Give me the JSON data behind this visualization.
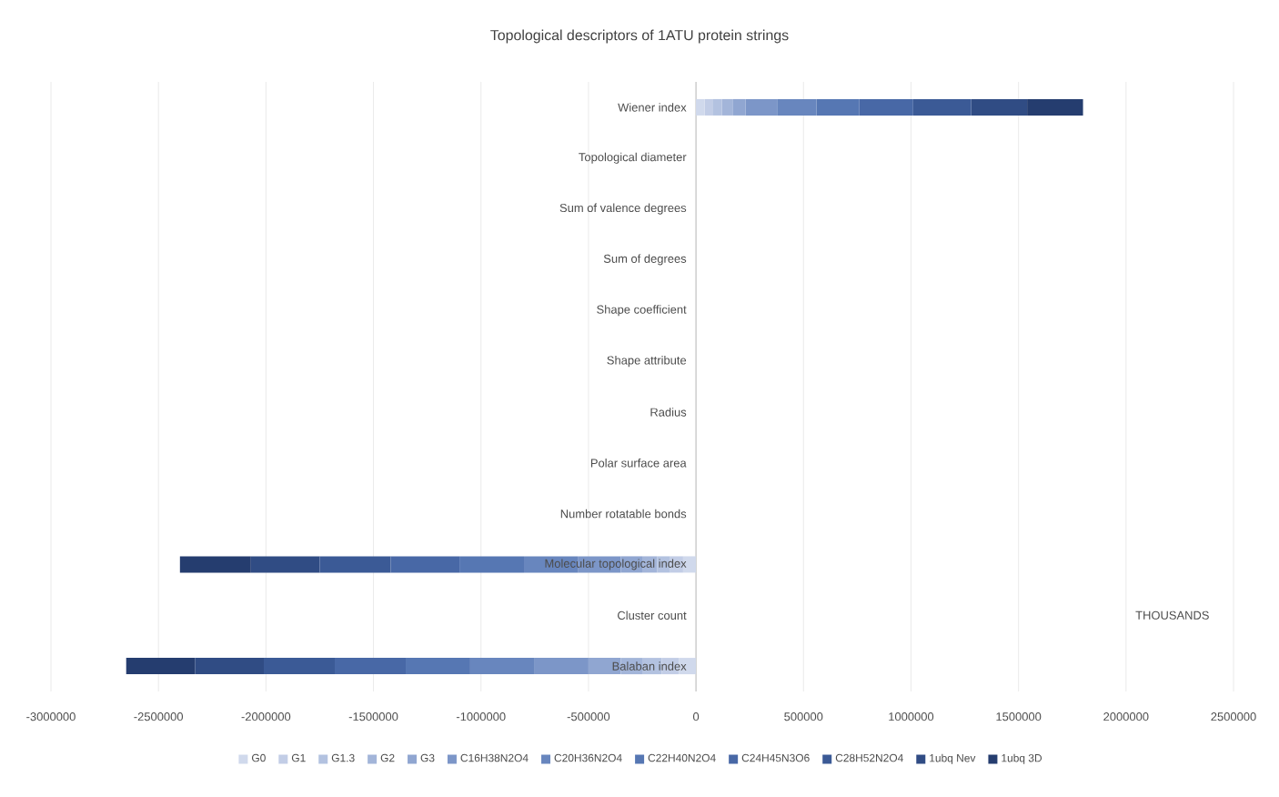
{
  "chart_data": {
    "type": "bar",
    "orientation": "horizontal",
    "stacked": true,
    "title": "Topological descriptors of 1ATU protein strings",
    "categories": [
      "Wiener index",
      "Topological diameter",
      "Sum of valence degrees",
      "Sum of degrees",
      "Shape coefficient",
      "Shape attribute",
      "Radius",
      "Polar surface area",
      "Number rotatable bonds",
      "Molecular topological index",
      "Cluster count",
      "Balaban index"
    ],
    "series": [
      {
        "name": "G0",
        "color": "#d0d9ec",
        "values": [
          40000,
          0,
          0,
          0,
          0,
          0,
          0,
          0,
          0,
          -60000,
          0,
          -80000
        ]
      },
      {
        "name": "G1",
        "color": "#c2cde6",
        "values": [
          40000,
          0,
          0,
          0,
          0,
          0,
          0,
          0,
          0,
          -60000,
          0,
          -80000
        ]
      },
      {
        "name": "G1.3",
        "color": "#b3c2e0",
        "values": [
          40000,
          0,
          0,
          0,
          0,
          0,
          0,
          0,
          0,
          -60000,
          0,
          -90000
        ]
      },
      {
        "name": "G2",
        "color": "#a3b5d9",
        "values": [
          50000,
          0,
          0,
          0,
          0,
          0,
          0,
          0,
          0,
          -70000,
          0,
          -100000
        ]
      },
      {
        "name": "G3",
        "color": "#90a6d1",
        "values": [
          60000,
          0,
          0,
          0,
          0,
          0,
          0,
          0,
          0,
          -100000,
          0,
          -150000
        ]
      },
      {
        "name": "C16H38N2O4",
        "color": "#7c96c8",
        "values": [
          150000,
          0,
          0,
          0,
          0,
          0,
          0,
          0,
          0,
          -200000,
          0,
          -250000
        ]
      },
      {
        "name": "C20H36N2O4",
        "color": "#6886be",
        "values": [
          180000,
          0,
          0,
          0,
          0,
          0,
          0,
          0,
          0,
          -250000,
          0,
          -300000
        ]
      },
      {
        "name": "C22H40N2O4",
        "color": "#5677b3",
        "values": [
          200000,
          0,
          0,
          0,
          0,
          0,
          0,
          0,
          0,
          -300000,
          0,
          -300000
        ]
      },
      {
        "name": "C24H45N3O6",
        "color": "#4868a6",
        "values": [
          250000,
          0,
          0,
          0,
          0,
          0,
          0,
          0,
          0,
          -320000,
          0,
          -330000
        ]
      },
      {
        "name": "C28H52N2O4",
        "color": "#3b5a96",
        "values": [
          270000,
          0,
          0,
          0,
          0,
          0,
          0,
          0,
          0,
          -330000,
          0,
          -330000
        ]
      },
      {
        "name": "1ubq Nev",
        "color": "#304c84",
        "values": [
          260000,
          0,
          0,
          0,
          0,
          0,
          0,
          0,
          0,
          -320000,
          0,
          -320000
        ]
      },
      {
        "name": "1ubq 3D",
        "color": "#253d6f",
        "values": [
          260000,
          0,
          0,
          0,
          0,
          0,
          0,
          0,
          0,
          -330000,
          0,
          -320000
        ]
      }
    ],
    "xlim": [
      -3000000,
      2500000
    ],
    "xticks": [
      -3000000,
      -2500000,
      -2000000,
      -1500000,
      -1000000,
      -500000,
      0,
      500000,
      1000000,
      1500000,
      2000000,
      2500000
    ],
    "grid": "x",
    "legend": "bottom",
    "annotations": [
      "THOUSANDS"
    ]
  }
}
